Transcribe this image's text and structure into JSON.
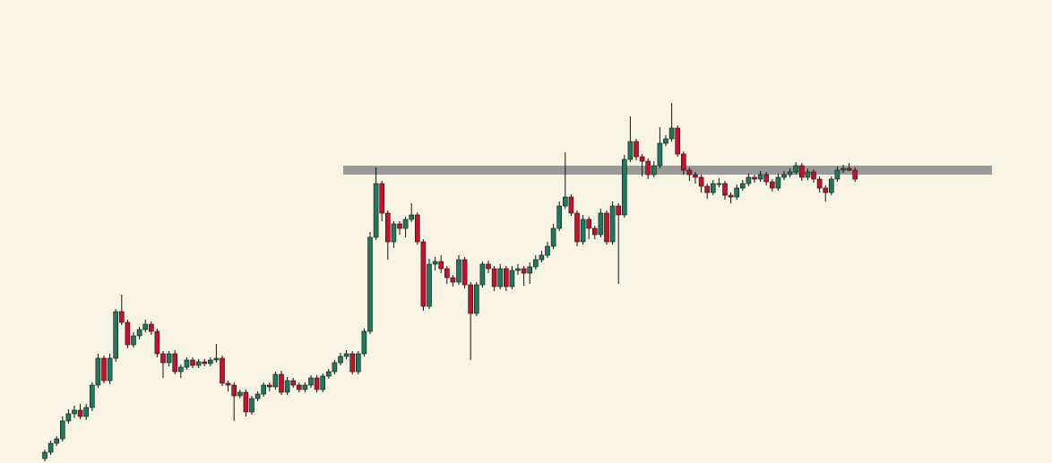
{
  "chart_data": {
    "type": "candlestick",
    "up_color": "#1f7a5c",
    "down_color": "#c8102e",
    "wick_color": "#111111",
    "level": 327,
    "level_color": "#9a9a9a",
    "ylim": [
      0,
      517
    ],
    "ohlc": [
      [
        5,
        15,
        2,
        12
      ],
      [
        12,
        25,
        9,
        22
      ],
      [
        22,
        30,
        19,
        27
      ],
      [
        27,
        52,
        24,
        47
      ],
      [
        47,
        60,
        44,
        55
      ],
      [
        55,
        64,
        50,
        59
      ],
      [
        59,
        66,
        49,
        52
      ],
      [
        52,
        66,
        48,
        62
      ],
      [
        62,
        90,
        58,
        87
      ],
      [
        87,
        122,
        84,
        117
      ],
      [
        117,
        120,
        89,
        92
      ],
      [
        92,
        122,
        88,
        117
      ],
      [
        117,
        172,
        113,
        169
      ],
      [
        169,
        188,
        154,
        157
      ],
      [
        157,
        160,
        128,
        132
      ],
      [
        132,
        146,
        129,
        142
      ],
      [
        142,
        152,
        138,
        149
      ],
      [
        149,
        160,
        146,
        155
      ],
      [
        155,
        158,
        143,
        147
      ],
      [
        147,
        150,
        118,
        122
      ],
      [
        122,
        125,
        95,
        112
      ],
      [
        112,
        125,
        108,
        122
      ],
      [
        122,
        126,
        99,
        102
      ],
      [
        102,
        110,
        95,
        107
      ],
      [
        107,
        118,
        104,
        115
      ],
      [
        115,
        118,
        106,
        109
      ],
      [
        109,
        116,
        106,
        113
      ],
      [
        113,
        116,
        108,
        111
      ],
      [
        111,
        118,
        108,
        115
      ],
      [
        115,
        133,
        112,
        117
      ],
      [
        117,
        120,
        86,
        89
      ],
      [
        89,
        92,
        80,
        87
      ],
      [
        87,
        90,
        47,
        75
      ],
      [
        75,
        82,
        72,
        79
      ],
      [
        79,
        82,
        52,
        57
      ],
      [
        57,
        75,
        54,
        72
      ],
      [
        72,
        80,
        69,
        77
      ],
      [
        77,
        90,
        74,
        87
      ],
      [
        87,
        90,
        80,
        85
      ],
      [
        85,
        102,
        82,
        99
      ],
      [
        99,
        103,
        76,
        79
      ],
      [
        79,
        96,
        76,
        92
      ],
      [
        92,
        95,
        84,
        87
      ],
      [
        87,
        90,
        79,
        82
      ],
      [
        82,
        90,
        79,
        87
      ],
      [
        87,
        98,
        84,
        95
      ],
      [
        95,
        98,
        79,
        82
      ],
      [
        82,
        100,
        79,
        97
      ],
      [
        97,
        105,
        94,
        102
      ],
      [
        102,
        115,
        99,
        112
      ],
      [
        112,
        123,
        109,
        119
      ],
      [
        119,
        126,
        116,
        122
      ],
      [
        122,
        125,
        99,
        102
      ],
      [
        102,
        125,
        99,
        122
      ],
      [
        122,
        150,
        119,
        147
      ],
      [
        147,
        258,
        144,
        252
      ],
      [
        252,
        330,
        249,
        312
      ],
      [
        312,
        315,
        270,
        279
      ],
      [
        279,
        282,
        227,
        247
      ],
      [
        247,
        270,
        240,
        267
      ],
      [
        267,
        270,
        255,
        262
      ],
      [
        262,
        275,
        252,
        272
      ],
      [
        272,
        290,
        269,
        277
      ],
      [
        277,
        280,
        244,
        247
      ],
      [
        247,
        250,
        170,
        175
      ],
      [
        175,
        228,
        172,
        222
      ],
      [
        222,
        230,
        215,
        225
      ],
      [
        225,
        232,
        212,
        217
      ],
      [
        217,
        220,
        200,
        207
      ],
      [
        207,
        210,
        197,
        202
      ],
      [
        202,
        232,
        199,
        227
      ],
      [
        227,
        230,
        195,
        199
      ],
      [
        199,
        202,
        115,
        167
      ],
      [
        167,
        202,
        164,
        199
      ],
      [
        199,
        225,
        196,
        222
      ],
      [
        222,
        226,
        212,
        217
      ],
      [
        217,
        220,
        192,
        197
      ],
      [
        197,
        222,
        194,
        217
      ],
      [
        217,
        220,
        192,
        197
      ],
      [
        197,
        220,
        194,
        215
      ],
      [
        215,
        222,
        210,
        217
      ],
      [
        217,
        220,
        198,
        212
      ],
      [
        212,
        224,
        200,
        219
      ],
      [
        219,
        232,
        216,
        227
      ],
      [
        227,
        237,
        224,
        232
      ],
      [
        232,
        247,
        229,
        242
      ],
      [
        242,
        267,
        239,
        262
      ],
      [
        262,
        292,
        259,
        287
      ],
      [
        287,
        347,
        284,
        297
      ],
      [
        297,
        300,
        276,
        279
      ],
      [
        279,
        282,
        242,
        247
      ],
      [
        247,
        277,
        244,
        272
      ],
      [
        272,
        275,
        250,
        262
      ],
      [
        262,
        265,
        250,
        255
      ],
      [
        255,
        284,
        252,
        279
      ],
      [
        279,
        282,
        244,
        247
      ],
      [
        247,
        292,
        244,
        287
      ],
      [
        287,
        290,
        200,
        277
      ],
      [
        277,
        344,
        274,
        339
      ],
      [
        339,
        387,
        336,
        359
      ],
      [
        359,
        362,
        338,
        342
      ],
      [
        342,
        345,
        320,
        337
      ],
      [
        337,
        340,
        317,
        322
      ],
      [
        322,
        337,
        319,
        332
      ],
      [
        332,
        375,
        329,
        357
      ],
      [
        357,
        366,
        354,
        362
      ],
      [
        362,
        402,
        359,
        374
      ],
      [
        374,
        377,
        342,
        345
      ],
      [
        345,
        348,
        322,
        327
      ],
      [
        327,
        330,
        315,
        322
      ],
      [
        322,
        325,
        312,
        319
      ],
      [
        319,
        322,
        302,
        309
      ],
      [
        309,
        312,
        295,
        302
      ],
      [
        302,
        316,
        299,
        312
      ],
      [
        312,
        318,
        308,
        312
      ],
      [
        312,
        315,
        294,
        299
      ],
      [
        299,
        302,
        290,
        297
      ],
      [
        297,
        311,
        294,
        307
      ],
      [
        307,
        316,
        304,
        312
      ],
      [
        312,
        323,
        309,
        319
      ],
      [
        319,
        322,
        313,
        317
      ],
      [
        317,
        326,
        314,
        322
      ],
      [
        322,
        325,
        310,
        314
      ],
      [
        314,
        317,
        303,
        307
      ],
      [
        307,
        323,
        304,
        319
      ],
      [
        319,
        326,
        316,
        322
      ],
      [
        322,
        329,
        319,
        325
      ],
      [
        325,
        336,
        322,
        332
      ],
      [
        332,
        335,
        315,
        319
      ],
      [
        319,
        329,
        316,
        325
      ],
      [
        325,
        328,
        313,
        317
      ],
      [
        317,
        320,
        302,
        307
      ],
      [
        307,
        310,
        292,
        302
      ],
      [
        302,
        320,
        299,
        317
      ],
      [
        317,
        331,
        314,
        327
      ],
      [
        327,
        333,
        324,
        329
      ],
      [
        329,
        335,
        326,
        327
      ],
      [
        327,
        330,
        314,
        317
      ]
    ]
  }
}
